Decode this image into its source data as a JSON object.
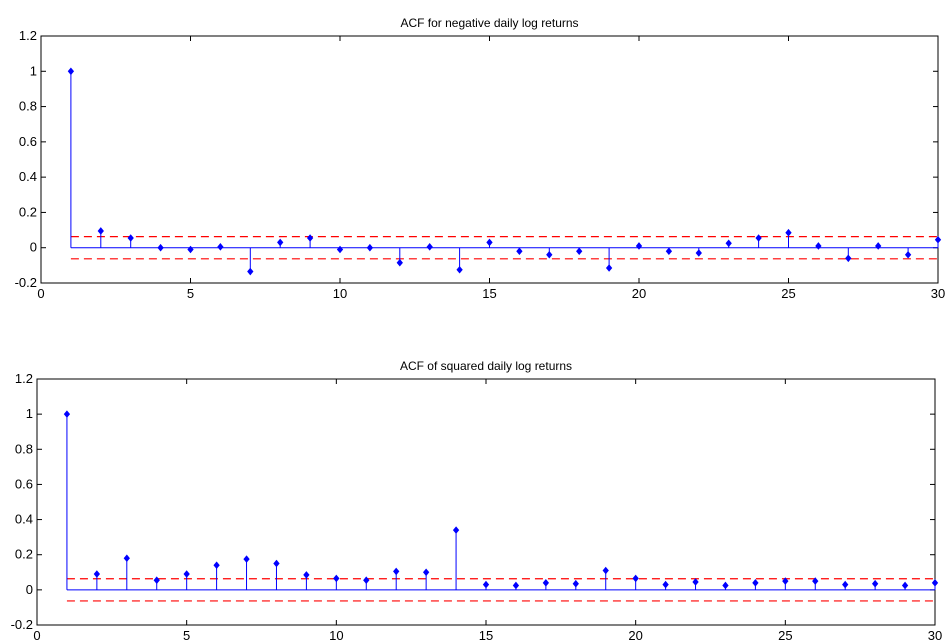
{
  "chart_data": [
    {
      "type": "stem",
      "title": "ACF for negative daily log returns",
      "xlabel": "",
      "ylabel": "",
      "xlim": [
        0,
        30
      ],
      "ylim": [
        -0.2,
        1.2
      ],
      "xticks": [
        "0",
        "5",
        "10",
        "15",
        "20",
        "25",
        "30"
      ],
      "yticks": [
        "-0.2",
        "0",
        "0.2",
        "0.4",
        "0.6",
        "0.8",
        "1",
        "1.2"
      ],
      "x": [
        1,
        2,
        3,
        4,
        5,
        6,
        7,
        8,
        9,
        10,
        11,
        12,
        13,
        14,
        15,
        16,
        17,
        18,
        19,
        20,
        21,
        22,
        23,
        24,
        25,
        26,
        27,
        28,
        29,
        30
      ],
      "values": [
        1.0,
        0.095,
        0.055,
        0.0,
        -0.01,
        0.005,
        -0.135,
        0.03,
        0.055,
        -0.01,
        0.0,
        -0.085,
        0.005,
        -0.125,
        0.03,
        -0.02,
        -0.04,
        -0.02,
        -0.115,
        0.01,
        -0.02,
        -0.03,
        0.025,
        0.055,
        0.085,
        0.01,
        -0.06,
        0.01,
        -0.04,
        0.045
      ],
      "confidence_bound": 0.063,
      "stem_color": "#0000ff",
      "bound_color": "#ff0000"
    },
    {
      "type": "stem",
      "title": "ACF of squared daily log returns",
      "xlabel": "",
      "ylabel": "",
      "xlim": [
        0,
        30
      ],
      "ylim": [
        -0.2,
        1.2
      ],
      "xticks": [
        "0",
        "5",
        "10",
        "15",
        "20",
        "25",
        "30"
      ],
      "yticks": [
        "-0.2",
        "0",
        "0.2",
        "0.4",
        "0.6",
        "0.8",
        "1",
        "1.2"
      ],
      "x": [
        1,
        2,
        3,
        4,
        5,
        6,
        7,
        8,
        9,
        10,
        11,
        12,
        13,
        14,
        15,
        16,
        17,
        18,
        19,
        20,
        21,
        22,
        23,
        24,
        25,
        26,
        27,
        28,
        29,
        30
      ],
      "values": [
        1.0,
        0.09,
        0.18,
        0.055,
        0.09,
        0.14,
        0.175,
        0.15,
        0.085,
        0.065,
        0.055,
        0.105,
        0.1,
        0.34,
        0.03,
        0.025,
        0.04,
        0.035,
        0.11,
        0.065,
        0.03,
        0.045,
        0.025,
        0.04,
        0.05,
        0.05,
        0.03,
        0.035,
        0.025,
        0.04
      ],
      "confidence_bound": 0.063,
      "stem_color": "#0000ff",
      "bound_color": "#ff0000"
    }
  ]
}
